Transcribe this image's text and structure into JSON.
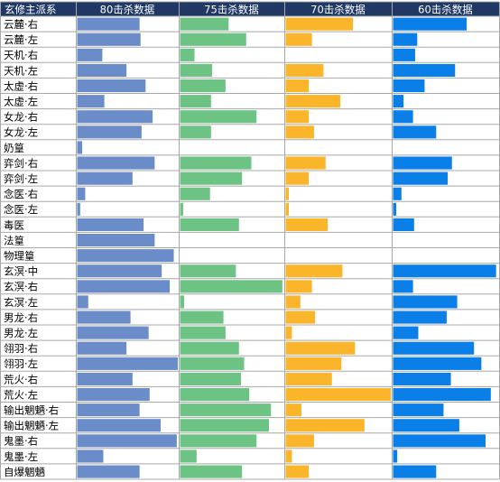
{
  "chart_data": {
    "type": "bar",
    "layout": "table-of-bar-columns",
    "header_color": "#1f3864",
    "header": {
      "label_column": "玄修主派系",
      "series": [
        "80击杀数据",
        "75击杀数据",
        "70击杀数据",
        "60击杀数据"
      ]
    },
    "categories": [
      "云麓·右",
      "云麓·左",
      "天机·右",
      "天机·左",
      "太虚·右",
      "太虚·左",
      "女龙·右",
      "女龙·左",
      "奶篁",
      "弈剑·右",
      "弈剑·左",
      "念医·右",
      "念医·左",
      "毒医",
      "法篁",
      "物理篁",
      "玄溟·中",
      "玄溟·右",
      "玄溟·左",
      "男龙·右",
      "男龙·左",
      "翎羽·右",
      "翎羽·左",
      "荒火·右",
      "荒火·左",
      "输出魍魉·右",
      "输出魍魉·左",
      "鬼墨·右",
      "鬼墨·左",
      "自爆魍魉"
    ],
    "value_scale_note": "bar lengths as fraction of column width",
    "series": [
      {
        "name": "80击杀数据",
        "color": "#6a8cc8",
        "values": [
          0.62,
          0.63,
          0.25,
          0.49,
          0.68,
          0.27,
          0.75,
          0.64,
          0.05,
          0.77,
          0.55,
          0.08,
          0.03,
          0.66,
          0.77,
          0.96,
          0.84,
          0.92,
          0.11,
          0.53,
          0.71,
          0.49,
          1.0,
          0.55,
          0.72,
          0.62,
          0.83,
          0.99,
          0.26,
          0.62
        ]
      },
      {
        "name": "75击杀数据",
        "color": "#6cc383",
        "values": [
          0.47,
          0.64,
          0.14,
          0.31,
          0.44,
          0.3,
          0.74,
          0.3,
          0,
          0.69,
          0.6,
          0.29,
          0.03,
          0.57,
          0,
          0,
          0.54,
          0.99,
          0.04,
          0.42,
          0.44,
          0.57,
          0.62,
          0.59,
          0.67,
          0.88,
          0.86,
          0.74,
          0.16,
          0.6
        ]
      },
      {
        "name": "70击杀数据",
        "color": "#fbb52a",
        "values": [
          0.64,
          0.25,
          0,
          0.36,
          0.22,
          0.52,
          0.22,
          0.27,
          0,
          0.38,
          0.22,
          0.03,
          0.03,
          0.4,
          0,
          0,
          0.54,
          0.25,
          0.14,
          0.28,
          0.06,
          0.66,
          0.53,
          0.44,
          1.0,
          0.15,
          0.75,
          0.27,
          0.06,
          0.22
        ]
      },
      {
        "name": "60击杀数据",
        "color": "#0a7fe8",
        "values": [
          0.7,
          0.23,
          0.21,
          0.59,
          0.3,
          0.1,
          0.19,
          0.41,
          0,
          0.56,
          0.52,
          0.08,
          0.03,
          0.2,
          0,
          0,
          0.98,
          0.19,
          0.61,
          0.51,
          0.24,
          0.77,
          0.84,
          0.55,
          0.93,
          0.48,
          0.63,
          0.88,
          0.04,
          0.41
        ]
      }
    ]
  }
}
